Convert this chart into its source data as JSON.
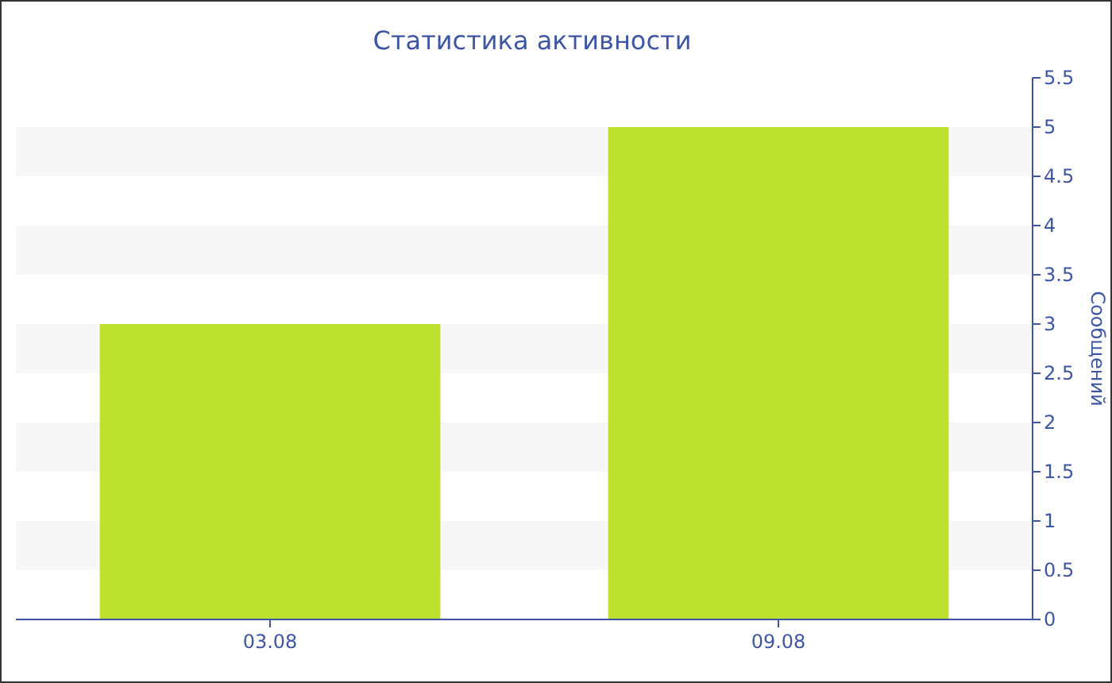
{
  "chart_data": {
    "type": "bar",
    "title": "Статистика активности",
    "y2label": "Сообщений",
    "categories": [
      "03.08",
      "09.08"
    ],
    "series": [
      {
        "color": "#bde12f",
        "values": [
          3,
          5
        ],
        "axis": "y2"
      }
    ],
    "y2lim": [
      0,
      5.5
    ],
    "y2ticks": [
      0,
      0.5,
      1,
      1.5,
      2,
      2.5,
      3,
      3.5,
      4,
      4.5,
      5,
      5.5
    ],
    "bands": [
      {
        "axis": "y2",
        "from": 0.5,
        "to": 1,
        "color": "#f7f7f7"
      },
      {
        "axis": "y2",
        "from": 1.5,
        "to": 2,
        "color": "#f7f7f7"
      },
      {
        "axis": "y2",
        "from": 2.5,
        "to": 3,
        "color": "#f7f7f7"
      },
      {
        "axis": "y2",
        "from": 3.5,
        "to": 4,
        "color": "#f7f7f7"
      },
      {
        "axis": "y2",
        "from": 4.5,
        "to": 5,
        "color": "#f7f7f7"
      }
    ]
  }
}
